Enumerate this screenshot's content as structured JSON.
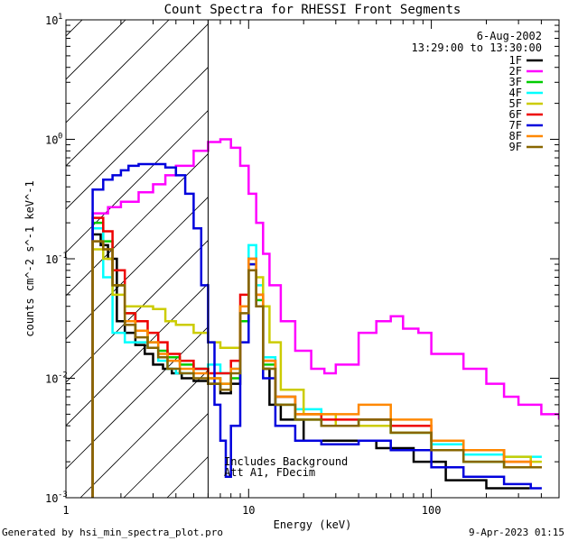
{
  "chart_data": {
    "type": "line",
    "title": "Count Spectra for RHESSI Front Segments",
    "xlabel": "Energy (keV)",
    "ylabel": "counts cm^-2 s^-1 keV^-1",
    "xscale": "log",
    "yscale": "log",
    "xlim": [
      1,
      500
    ],
    "ylim": [
      0.001,
      10
    ],
    "x_ticks": [
      {
        "value": 1,
        "label": "1"
      },
      {
        "value": 10,
        "label": "10"
      },
      {
        "value": 100,
        "label": "100"
      }
    ],
    "y_ticks": [
      {
        "value": 0.001,
        "base": "10",
        "exp": "-3"
      },
      {
        "value": 0.01,
        "base": "10",
        "exp": "-2"
      },
      {
        "value": 0.1,
        "base": "10",
        "exp": "-1"
      },
      {
        "value": 1,
        "base": "10",
        "exp": "0"
      },
      {
        "value": 10,
        "base": "10",
        "exp": "1"
      }
    ],
    "hatched_region_xmax": 6,
    "annotations": {
      "date": "6-Aug-2002",
      "time_range": "13:29:00 to 13:30:00",
      "note_line1": "Includes Background",
      "note_line2": "Att A1, FDecim"
    },
    "series": [
      {
        "name": "1F",
        "color": "#000000",
        "points": [
          [
            1.4,
            0.16
          ],
          [
            1.55,
            0.13
          ],
          [
            1.7,
            0.1
          ],
          [
            1.9,
            0.03
          ],
          [
            2.1,
            0.024
          ],
          [
            2.4,
            0.019
          ],
          [
            2.7,
            0.016
          ],
          [
            3.0,
            0.013
          ],
          [
            3.4,
            0.012
          ],
          [
            3.8,
            0.011
          ],
          [
            4.3,
            0.01
          ],
          [
            5.0,
            0.0095
          ],
          [
            6.0,
            0.009
          ],
          [
            7.0,
            0.0075
          ],
          [
            8.0,
            0.009
          ],
          [
            9.0,
            0.03
          ],
          [
            10.0,
            0.08
          ],
          [
            11.0,
            0.04
          ],
          [
            12.0,
            0.012
          ],
          [
            13.0,
            0.006
          ],
          [
            15.0,
            0.0045
          ],
          [
            20.0,
            0.003
          ],
          [
            30.0,
            0.003
          ],
          [
            50.0,
            0.0026
          ],
          [
            80.0,
            0.002
          ],
          [
            120.0,
            0.0014
          ],
          [
            200.0,
            0.0012
          ],
          [
            300.0,
            0.0012
          ]
        ]
      },
      {
        "name": "2F",
        "color": "#ff00ff",
        "points": [
          [
            1.4,
            0.24
          ],
          [
            1.7,
            0.27
          ],
          [
            2.0,
            0.3
          ],
          [
            2.5,
            0.36
          ],
          [
            3.0,
            0.42
          ],
          [
            3.5,
            0.5
          ],
          [
            4.0,
            0.6
          ],
          [
            5.0,
            0.8
          ],
          [
            6.0,
            0.95
          ],
          [
            7.0,
            1.0
          ],
          [
            8.0,
            0.85
          ],
          [
            9.0,
            0.6
          ],
          [
            10.0,
            0.35
          ],
          [
            11.0,
            0.2
          ],
          [
            12.0,
            0.11
          ],
          [
            13.0,
            0.06
          ],
          [
            15.0,
            0.03
          ],
          [
            18.0,
            0.017
          ],
          [
            22.0,
            0.012
          ],
          [
            26.0,
            0.011
          ],
          [
            30.0,
            0.013
          ],
          [
            40.0,
            0.024
          ],
          [
            50.0,
            0.03
          ],
          [
            60.0,
            0.033
          ],
          [
            70.0,
            0.026
          ],
          [
            85.0,
            0.024
          ],
          [
            100.0,
            0.016
          ],
          [
            150.0,
            0.012
          ],
          [
            200.0,
            0.009
          ],
          [
            250.0,
            0.007
          ],
          [
            300.0,
            0.006
          ],
          [
            400.0,
            0.005
          ],
          [
            500.0,
            0.0045
          ]
        ]
      },
      {
        "name": "3F",
        "color": "#00cc00",
        "points": [
          [
            1.4,
            0.2
          ],
          [
            1.6,
            0.14
          ],
          [
            1.8,
            0.06
          ],
          [
            2.1,
            0.035
          ],
          [
            2.4,
            0.025
          ],
          [
            2.8,
            0.02
          ],
          [
            3.2,
            0.017
          ],
          [
            3.6,
            0.015
          ],
          [
            4.2,
            0.013
          ],
          [
            5.0,
            0.012
          ],
          [
            6.0,
            0.01
          ],
          [
            7.0,
            0.009
          ],
          [
            8.0,
            0.01
          ],
          [
            9.0,
            0.03
          ],
          [
            10.0,
            0.09
          ],
          [
            11.0,
            0.045
          ],
          [
            12.0,
            0.013
          ],
          [
            14.0,
            0.006
          ],
          [
            18.0,
            0.0045
          ],
          [
            25.0,
            0.004
          ],
          [
            40.0,
            0.0045
          ],
          [
            60.0,
            0.0035
          ],
          [
            100.0,
            0.0025
          ],
          [
            150.0,
            0.002
          ],
          [
            250.0,
            0.0018
          ],
          [
            350.0,
            0.0018
          ]
        ]
      },
      {
        "name": "4F",
        "color": "#00ffff",
        "points": [
          [
            1.4,
            0.18
          ],
          [
            1.6,
            0.07
          ],
          [
            1.8,
            0.024
          ],
          [
            2.1,
            0.02
          ],
          [
            2.4,
            0.02
          ],
          [
            2.8,
            0.018
          ],
          [
            3.2,
            0.014
          ],
          [
            3.6,
            0.012
          ],
          [
            4.0,
            0.011
          ],
          [
            5.0,
            0.012
          ],
          [
            6.0,
            0.013
          ],
          [
            7.0,
            0.011
          ],
          [
            8.0,
            0.012
          ],
          [
            9.0,
            0.04
          ],
          [
            10.0,
            0.13
          ],
          [
            11.0,
            0.06
          ],
          [
            12.0,
            0.015
          ],
          [
            14.0,
            0.007
          ],
          [
            18.0,
            0.0055
          ],
          [
            25.0,
            0.004
          ],
          [
            40.0,
            0.004
          ],
          [
            60.0,
            0.0035
          ],
          [
            100.0,
            0.0028
          ],
          [
            150.0,
            0.0023
          ],
          [
            250.0,
            0.0022
          ],
          [
            350.0,
            0.0022
          ]
        ]
      },
      {
        "name": "5F",
        "color": "#cccc00",
        "points": [
          [
            1.4,
            0.12
          ],
          [
            1.6,
            0.1
          ],
          [
            1.8,
            0.05
          ],
          [
            2.1,
            0.04
          ],
          [
            2.5,
            0.04
          ],
          [
            3.0,
            0.038
          ],
          [
            3.5,
            0.03
          ],
          [
            4.0,
            0.028
          ],
          [
            5.0,
            0.024
          ],
          [
            6.0,
            0.02
          ],
          [
            7.0,
            0.018
          ],
          [
            8.0,
            0.018
          ],
          [
            9.0,
            0.04
          ],
          [
            10.0,
            0.09
          ],
          [
            11.0,
            0.07
          ],
          [
            12.0,
            0.04
          ],
          [
            13.0,
            0.02
          ],
          [
            15.0,
            0.008
          ],
          [
            20.0,
            0.005
          ],
          [
            30.0,
            0.004
          ],
          [
            60.0,
            0.0035
          ],
          [
            100.0,
            0.003
          ],
          [
            150.0,
            0.0025
          ],
          [
            250.0,
            0.0022
          ],
          [
            350.0,
            0.002
          ]
        ]
      },
      {
        "name": "6F",
        "color": "#ee0000",
        "points": [
          [
            1.4,
            0.22
          ],
          [
            1.6,
            0.17
          ],
          [
            1.8,
            0.08
          ],
          [
            2.1,
            0.035
          ],
          [
            2.4,
            0.03
          ],
          [
            2.8,
            0.024
          ],
          [
            3.2,
            0.02
          ],
          [
            3.6,
            0.016
          ],
          [
            4.2,
            0.014
          ],
          [
            5.0,
            0.012
          ],
          [
            6.0,
            0.011
          ],
          [
            7.0,
            0.011
          ],
          [
            8.0,
            0.014
          ],
          [
            9.0,
            0.05
          ],
          [
            10.0,
            0.1
          ],
          [
            11.0,
            0.05
          ],
          [
            12.0,
            0.014
          ],
          [
            14.0,
            0.007
          ],
          [
            18.0,
            0.005
          ],
          [
            25.0,
            0.0045
          ],
          [
            40.0,
            0.0045
          ],
          [
            60.0,
            0.004
          ],
          [
            100.0,
            0.003
          ],
          [
            150.0,
            0.0025
          ],
          [
            250.0,
            0.002
          ],
          [
            350.0,
            0.0018
          ]
        ]
      },
      {
        "name": "7F",
        "color": "#0000dd",
        "points": [
          [
            1.4,
            0.38
          ],
          [
            1.6,
            0.46
          ],
          [
            1.8,
            0.5
          ],
          [
            2.0,
            0.55
          ],
          [
            2.2,
            0.6
          ],
          [
            2.5,
            0.62
          ],
          [
            3.0,
            0.62
          ],
          [
            3.5,
            0.58
          ],
          [
            4.0,
            0.5
          ],
          [
            4.5,
            0.35
          ],
          [
            5.0,
            0.18
          ],
          [
            5.5,
            0.06
          ],
          [
            6.0,
            0.02
          ],
          [
            6.5,
            0.006
          ],
          [
            7.0,
            0.003
          ],
          [
            7.5,
            0.0015
          ],
          [
            8.0,
            0.004
          ],
          [
            9.0,
            0.02
          ],
          [
            10.0,
            0.09
          ],
          [
            11.0,
            0.04
          ],
          [
            12.0,
            0.01
          ],
          [
            14.0,
            0.004
          ],
          [
            18.0,
            0.003
          ],
          [
            25.0,
            0.0028
          ],
          [
            40.0,
            0.003
          ],
          [
            60.0,
            0.0025
          ],
          [
            100.0,
            0.0018
          ],
          [
            150.0,
            0.0015
          ],
          [
            250.0,
            0.0013
          ],
          [
            350.0,
            0.0012
          ]
        ]
      },
      {
        "name": "8F",
        "color": "#ff8800",
        "points": [
          [
            1.4,
            0.14
          ],
          [
            1.6,
            0.12
          ],
          [
            1.8,
            0.06
          ],
          [
            2.1,
            0.03
          ],
          [
            2.4,
            0.025
          ],
          [
            2.8,
            0.02
          ],
          [
            3.2,
            0.016
          ],
          [
            3.6,
            0.014
          ],
          [
            4.2,
            0.012
          ],
          [
            5.0,
            0.011
          ],
          [
            6.0,
            0.01
          ],
          [
            7.0,
            0.009
          ],
          [
            8.0,
            0.012
          ],
          [
            9.0,
            0.04
          ],
          [
            10.0,
            0.1
          ],
          [
            11.0,
            0.05
          ],
          [
            12.0,
            0.014
          ],
          [
            14.0,
            0.007
          ],
          [
            18.0,
            0.005
          ],
          [
            25.0,
            0.005
          ],
          [
            40.0,
            0.006
          ],
          [
            60.0,
            0.0045
          ],
          [
            100.0,
            0.003
          ],
          [
            150.0,
            0.0025
          ],
          [
            250.0,
            0.002
          ],
          [
            350.0,
            0.0018
          ]
        ]
      },
      {
        "name": "9F",
        "color": "#886600",
        "points": [
          [
            1.4,
            0.14
          ],
          [
            1.6,
            0.12
          ],
          [
            1.8,
            0.06
          ],
          [
            2.1,
            0.028
          ],
          [
            2.4,
            0.022
          ],
          [
            2.8,
            0.018
          ],
          [
            3.2,
            0.015
          ],
          [
            3.6,
            0.012
          ],
          [
            4.2,
            0.011
          ],
          [
            5.0,
            0.01
          ],
          [
            6.0,
            0.009
          ],
          [
            7.0,
            0.008
          ],
          [
            8.0,
            0.011
          ],
          [
            9.0,
            0.035
          ],
          [
            10.0,
            0.08
          ],
          [
            11.0,
            0.04
          ],
          [
            12.0,
            0.012
          ],
          [
            14.0,
            0.006
          ],
          [
            18.0,
            0.0045
          ],
          [
            25.0,
            0.004
          ],
          [
            40.0,
            0.0045
          ],
          [
            60.0,
            0.0035
          ],
          [
            100.0,
            0.0025
          ],
          [
            150.0,
            0.002
          ],
          [
            250.0,
            0.0018
          ],
          [
            350.0,
            0.0018
          ]
        ]
      }
    ]
  },
  "footer": {
    "left": "Generated by hsi_min_spectra_plot.pro",
    "right": "9-Apr-2023 01:15"
  }
}
